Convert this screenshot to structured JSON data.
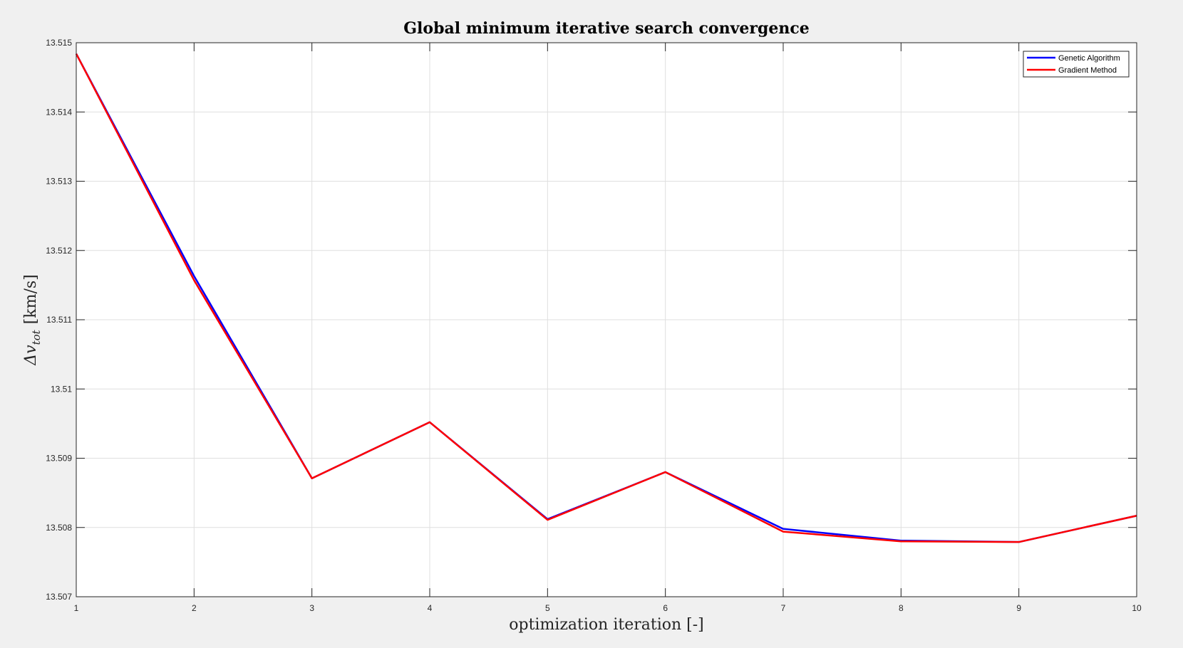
{
  "chart_data": {
    "type": "line",
    "title": "Global minimum iterative search convergence",
    "xlabel": "optimization iteration [-]",
    "ylabel_parts": {
      "main": "Δv",
      "sub": "tot",
      "unit": "[km/s]"
    },
    "x": [
      1,
      2,
      3,
      4,
      5,
      6,
      7,
      8,
      9,
      10
    ],
    "xlim": [
      1,
      10
    ],
    "ylim": [
      13.507,
      13.515
    ],
    "xticks": [
      1,
      2,
      3,
      4,
      5,
      6,
      7,
      8,
      9,
      10
    ],
    "xtick_labels": [
      "1",
      "2",
      "3",
      "4",
      "5",
      "6",
      "7",
      "8",
      "9",
      "10"
    ],
    "yticks": [
      13.507,
      13.508,
      13.509,
      13.51,
      13.511,
      13.512,
      13.513,
      13.514,
      13.515
    ],
    "ytick_labels": [
      "13.507",
      "13.508",
      "13.509",
      "13.51",
      "13.511",
      "13.512",
      "13.513",
      "13.514",
      "13.515"
    ],
    "grid": true,
    "legend_position": "top-right",
    "series": [
      {
        "name": "Genetic Algorithm",
        "color": "#0000ff",
        "values": [
          13.51484,
          13.51163,
          13.50871,
          13.50952,
          13.50812,
          13.5088,
          13.50798,
          13.50781,
          13.50779,
          13.50817
        ]
      },
      {
        "name": "Gradient Method",
        "color": "#ff0000",
        "values": [
          13.51484,
          13.51157,
          13.50871,
          13.50952,
          13.50811,
          13.5088,
          13.50794,
          13.5078,
          13.50779,
          13.50817
        ]
      }
    ]
  }
}
